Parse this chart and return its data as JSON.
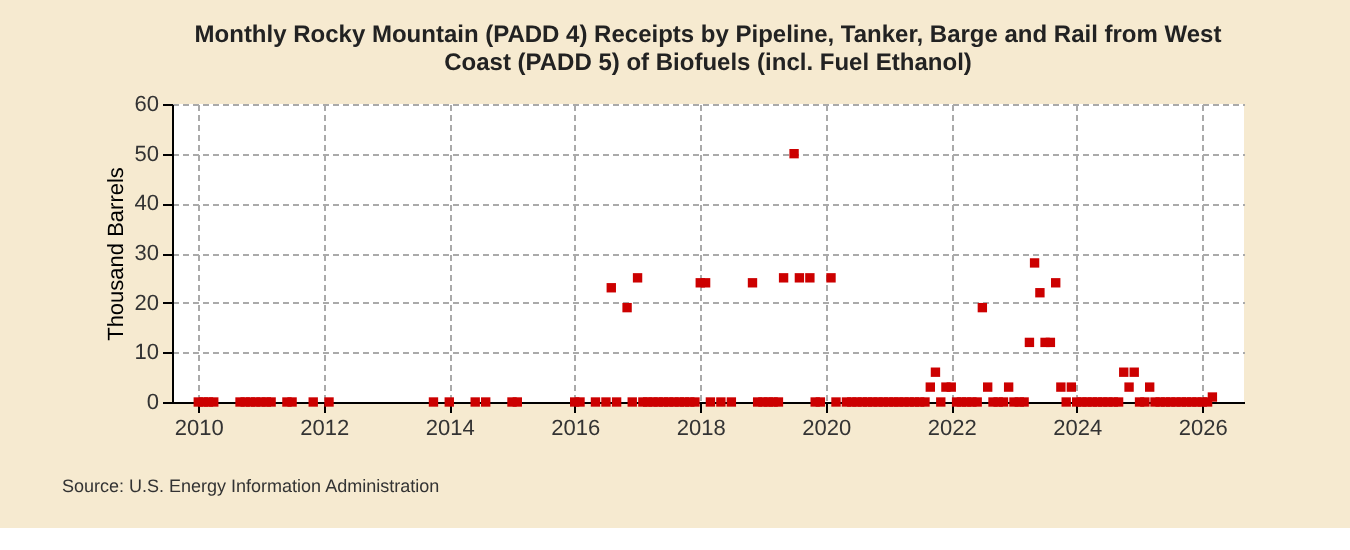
{
  "chart_data": {
    "type": "scatter",
    "title": "Monthly Rocky Mountain (PADD 4) Receipts by Pipeline, Tanker, Barge and Rail from West Coast (PADD 5) of Biofuels (incl. Fuel Ethanol)",
    "ylabel": "Thousand Barrels",
    "annotations": [
      "Source: U.S. Energy Information Administration"
    ],
    "x": [
      "2010-01",
      "2010-02",
      "2010-03",
      "2010-04",
      "2010-09",
      "2010-10",
      "2010-11",
      "2010-12",
      "2011-01",
      "2011-02",
      "2011-03",
      "2011-06",
      "2011-07",
      "2011-11",
      "2012-02",
      "2013-10",
      "2014-01",
      "2014-06",
      "2014-08",
      "2015-01",
      "2015-02",
      "2016-01",
      "2016-02",
      "2016-05",
      "2016-07",
      "2016-08",
      "2016-09",
      "2016-11",
      "2016-12",
      "2017-01",
      "2017-02",
      "2017-03",
      "2017-04",
      "2017-05",
      "2017-06",
      "2017-07",
      "2017-08",
      "2017-09",
      "2017-10",
      "2017-11",
      "2017-12",
      "2018-01",
      "2018-02",
      "2018-03",
      "2018-05",
      "2018-07",
      "2018-11",
      "2018-12",
      "2019-01",
      "2019-02",
      "2019-03",
      "2019-04",
      "2019-05",
      "2019-07",
      "2019-08",
      "2019-10",
      "2019-11",
      "2019-12",
      "2020-02",
      "2020-03",
      "2020-05",
      "2020-06",
      "2020-07",
      "2020-08",
      "2020-09",
      "2020-10",
      "2020-11",
      "2020-12",
      "2021-01",
      "2021-02",
      "2021-03",
      "2021-04",
      "2021-05",
      "2021-06",
      "2021-07",
      "2021-08",
      "2021-09",
      "2021-10",
      "2021-11",
      "2021-12",
      "2022-01",
      "2022-02",
      "2022-03",
      "2022-04",
      "2022-05",
      "2022-06",
      "2022-07",
      "2022-08",
      "2022-09",
      "2022-10",
      "2022-11",
      "2022-12",
      "2023-01",
      "2023-02",
      "2023-03",
      "2023-04",
      "2023-05",
      "2023-06",
      "2023-07",
      "2023-08",
      "2023-09",
      "2023-10",
      "2023-11",
      "2023-12",
      "2024-01",
      "2024-02",
      "2024-03",
      "2024-04",
      "2024-05",
      "2024-06",
      "2024-07",
      "2024-08",
      "2024-09",
      "2024-10",
      "2024-11",
      "2024-12",
      "2025-01",
      "2025-02",
      "2025-03",
      "2025-04",
      "2025-05",
      "2025-06",
      "2025-07",
      "2025-08",
      "2025-09",
      "2025-10",
      "2025-11",
      "2025-12",
      "2026-01",
      "2026-02",
      "2026-03"
    ],
    "series": [
      {
        "color": "#cc0000",
        "values": [
          0,
          0,
          0,
          0,
          0,
          0,
          0,
          0,
          0,
          0,
          0,
          0,
          0,
          0,
          0,
          0,
          0,
          0,
          0,
          0,
          0,
          0,
          0,
          0,
          0,
          23,
          0,
          19,
          0,
          25,
          0,
          0,
          0,
          0,
          0,
          0,
          0,
          0,
          0,
          0,
          0,
          24,
          24,
          0,
          0,
          0,
          24,
          0,
          0,
          0,
          0,
          0,
          25,
          50,
          25,
          25,
          0,
          0,
          25,
          0,
          0,
          0,
          0,
          0,
          0,
          0,
          0,
          0,
          0,
          0,
          0,
          0,
          0,
          0,
          0,
          0,
          3,
          6,
          0,
          3,
          3,
          0,
          0,
          0,
          0,
          0,
          19,
          3,
          0,
          0,
          0,
          3,
          0,
          0,
          0,
          12,
          28,
          22,
          12,
          12,
          24,
          3,
          0,
          3,
          0,
          0,
          0,
          0,
          0,
          0,
          0,
          0,
          0,
          6,
          3,
          6,
          0,
          0,
          3,
          0,
          0,
          0,
          0,
          0,
          0,
          0,
          0,
          0,
          0,
          0,
          1
        ]
      }
    ],
    "xlim": [
      "2009-08",
      "2026-09"
    ],
    "xticks": [
      "2010",
      "2012",
      "2014",
      "2016",
      "2018",
      "2020",
      "2022",
      "2024",
      "2026"
    ],
    "ylim": [
      0,
      60
    ],
    "yticks": [
      0,
      10,
      20,
      30,
      40,
      50,
      60
    ],
    "grid": true,
    "marker": "square",
    "legend": false
  }
}
